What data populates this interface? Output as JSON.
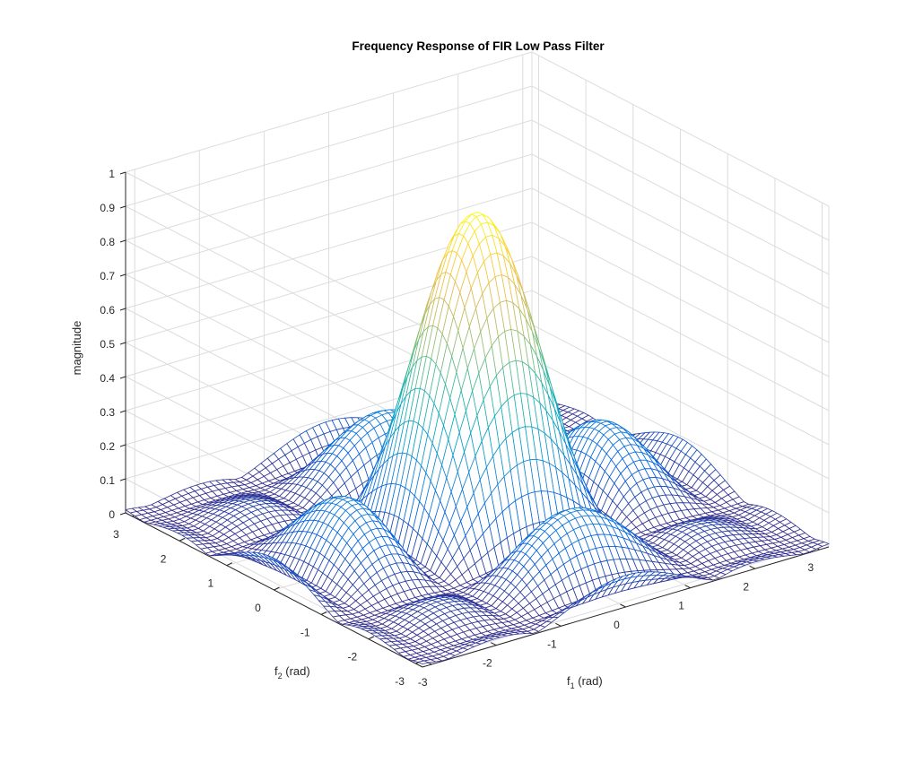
{
  "chart_data": {
    "type": "surface",
    "title": "Frequency Response of FIR Low Pass Filter",
    "xlabel": "f_1 (rad)",
    "xlabel_main": "f",
    "xlabel_sub": "1",
    "xlabel_rest": " (rad)",
    "ylabel": "f_2 (rad)",
    "ylabel_main": "f",
    "ylabel_sub": "2",
    "ylabel_rest": " (rad)",
    "zlabel": "magnitude",
    "xlim": [
      -3.14159,
      3.14159
    ],
    "ylim": [
      -3.14159,
      3.14159
    ],
    "zlim": [
      0,
      1
    ],
    "xticks": [
      -3,
      -2,
      -1,
      0,
      1,
      2,
      3
    ],
    "yticks": [
      -3,
      -2,
      -1,
      0,
      1,
      2,
      3
    ],
    "zticks": [
      0,
      0.1,
      0.2,
      0.3,
      0.4,
      0.5,
      0.6,
      0.7,
      0.8,
      0.9,
      1
    ],
    "ztick_labels": [
      "0",
      "0.1",
      "0.2",
      "0.3",
      "0.4",
      "0.5",
      "0.6",
      "0.7",
      "0.8",
      "0.9",
      "1"
    ],
    "grid": true,
    "colormap": "parula",
    "colormap_stops": [
      "#352a87",
      "#0363e1",
      "#1485d4",
      "#06a7c6",
      "#38b99e",
      "#92bf73",
      "#d9ba56",
      "#fcce2e",
      "#f9fb0e"
    ],
    "mesh_size": 64,
    "peak": {
      "x": 0,
      "y": 0,
      "z": 0.93
    },
    "surface_function": "|sinc-like separable response| = |sin(2.25 f1)/(2.25 f1)| * |sin(2.25 f2)/(2.25 f2)| * 0.93"
  }
}
